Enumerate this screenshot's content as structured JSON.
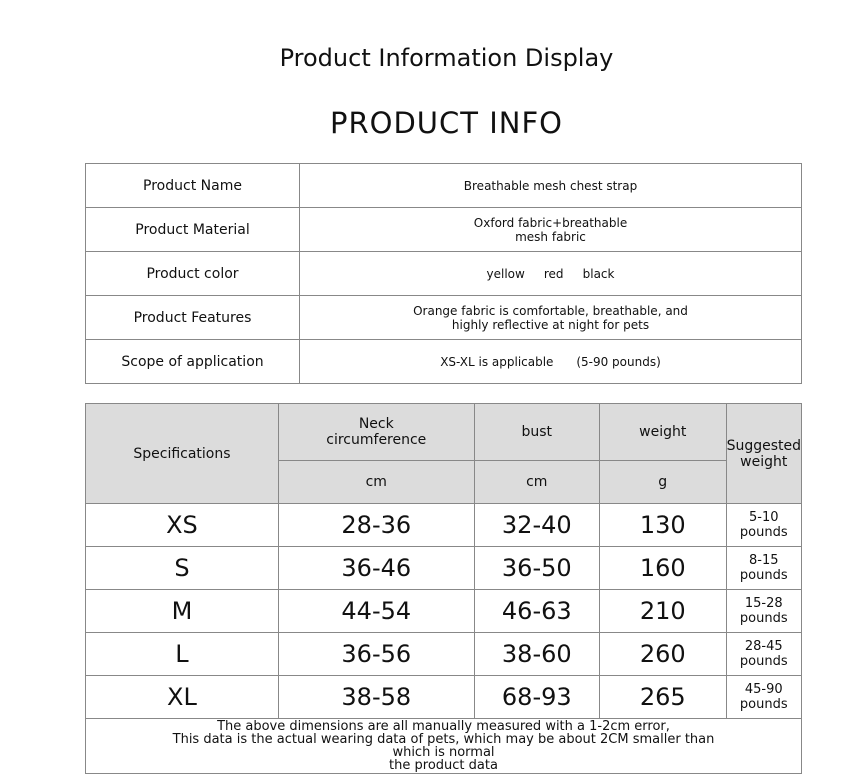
{
  "title": "Product Information Display",
  "subtitle": "PRODUCT INFO",
  "info": [
    {
      "label": "Product Name",
      "value": "Breathable mesh chest strap"
    },
    {
      "label": "Product Material",
      "value": "Oxford fabric+breathable mesh fabric"
    },
    {
      "label": "Product color",
      "value": "yellow     red     black"
    },
    {
      "label": "Product Features",
      "value": "Orange fabric is comfortable, breathable, and highly reflective at night for pets"
    },
    {
      "label": "Scope of application",
      "value": "XS-XL is applicable      (5-90 pounds)"
    }
  ],
  "spec": {
    "headers": {
      "size": "Specifications",
      "neck": "Neck circumference",
      "bust": "bust",
      "weight": "weight",
      "suggested": "Suggested weight",
      "neck_unit": "cm",
      "bust_unit": "cm",
      "weight_unit": "g"
    },
    "rows": [
      {
        "size": "XS",
        "neck": "28-36",
        "bust": "32-40",
        "weight": "130",
        "suggested": "5-10 pounds"
      },
      {
        "size": "S",
        "neck": "36-46",
        "bust": "36-50",
        "weight": "160",
        "suggested": "8-15 pounds"
      },
      {
        "size": "M",
        "neck": "44-54",
        "bust": "46-63",
        "weight": "210",
        "suggested": "15-28 pounds"
      },
      {
        "size": "L",
        "neck": "36-56",
        "bust": "38-60",
        "weight": "260",
        "suggested": "28-45 pounds"
      },
      {
        "size": "XL",
        "neck": "38-58",
        "bust": "68-93",
        "weight": "265",
        "suggested": "45-90 pounds"
      }
    ],
    "note": [
      "The above dimensions are all manually measured with a 1-2cm error,",
      "This data is the actual wearing data of pets, which may be about 2CM smaller than",
      "which is normal",
      "the product data"
    ]
  }
}
